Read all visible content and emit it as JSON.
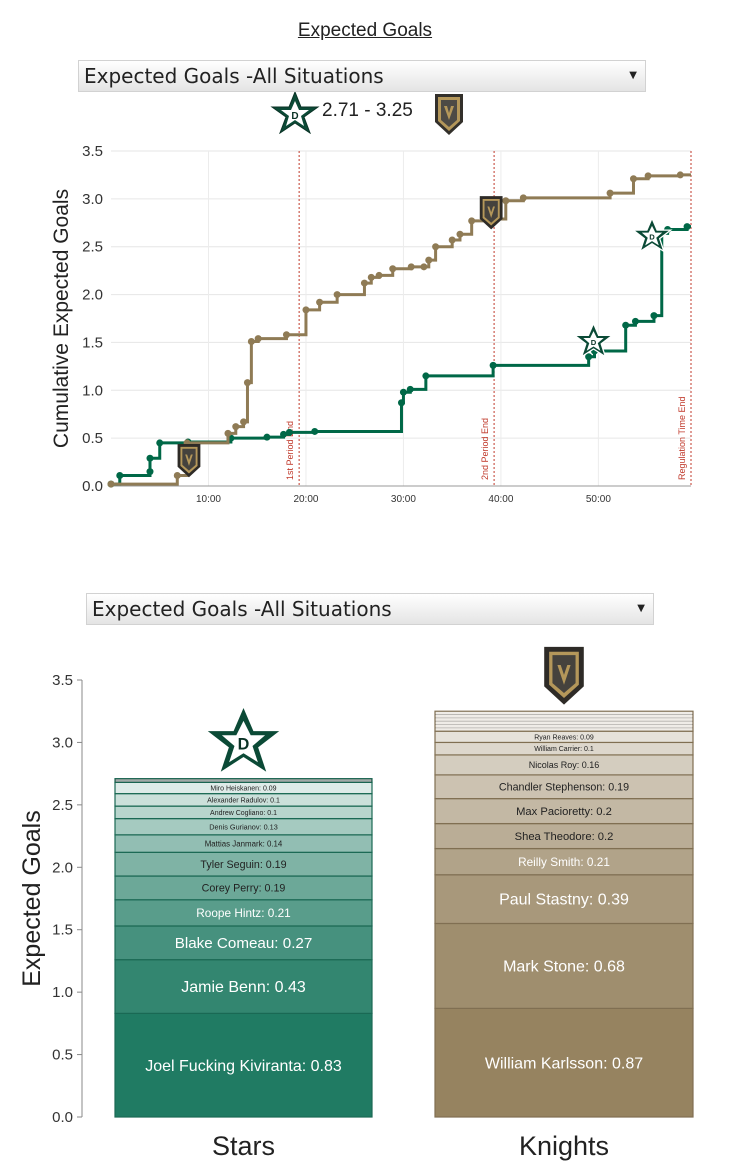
{
  "page": {
    "title": "Expected Goals",
    "dropdown_1_value": "Expected Goals -All Situations",
    "dropdown_2_value": "Expected Goals -All Situations",
    "score_text": "2.71 - 3.25"
  },
  "colors": {
    "stars": "#006847",
    "knights": "#8f7b55",
    "period_line": "#c0392b"
  },
  "icons": [
    "stars-logo-icon",
    "knights-logo-icon",
    "chevron-down-icon"
  ],
  "chart_data": [
    {
      "type": "line",
      "title": "",
      "xlabel": "",
      "ylabel": "Cumulative Expected Goals",
      "xlim": [
        0,
        59.5
      ],
      "ylim": [
        0,
        3.5
      ],
      "y_ticks": [
        "0.0",
        "0.5",
        "1.0",
        "1.5",
        "2.0",
        "2.5",
        "3.0",
        "3.5"
      ],
      "x_ticks": [
        {
          "value": 10,
          "label": "10:00"
        },
        {
          "value": 20,
          "label": "20:00"
        },
        {
          "value": 30,
          "label": "30:00"
        },
        {
          "value": 40,
          "label": "40:00"
        },
        {
          "value": 50,
          "label": "50:00"
        }
      ],
      "grid": true,
      "period_markers": [
        {
          "value": 19.3,
          "label": "1st Period End"
        },
        {
          "value": 39.3,
          "label": "2nd Period End"
        },
        {
          "value": 59.5,
          "label": "Regulation Time End"
        }
      ],
      "goal_markers": [
        {
          "team": "Knights",
          "x": 8.0,
          "y": 0.28
        },
        {
          "team": "Knights",
          "x": 39.0,
          "y": 2.87
        },
        {
          "team": "Stars",
          "x": 49.5,
          "y": 1.52
        },
        {
          "team": "Stars",
          "x": 55.5,
          "y": 2.62
        }
      ],
      "series": [
        {
          "name": "Stars",
          "points": [
            [
              0,
              0.02
            ],
            [
              0.9,
              0.11
            ],
            [
              4.0,
              0.15
            ],
            [
              4.0,
              0.29
            ],
            [
              5.0,
              0.45
            ],
            [
              7.9,
              0.46
            ],
            [
              12.3,
              0.5
            ],
            [
              16.0,
              0.51
            ],
            [
              17.7,
              0.54
            ],
            [
              18.3,
              0.56
            ],
            [
              20.9,
              0.57
            ],
            [
              29.8,
              0.87
            ],
            [
              30.0,
              0.98
            ],
            [
              30.7,
              1.01
            ],
            [
              32.3,
              1.15
            ],
            [
              39.2,
              1.26
            ],
            [
              49.0,
              1.35
            ],
            [
              49.6,
              1.41
            ],
            [
              52.8,
              1.68
            ],
            [
              53.8,
              1.72
            ],
            [
              55.7,
              1.78
            ],
            [
              56.5,
              2.64
            ],
            [
              57.1,
              2.68
            ],
            [
              59.1,
              2.71
            ]
          ]
        },
        {
          "name": "Knights",
          "points": [
            [
              0,
              0.02
            ],
            [
              6.8,
              0.11
            ],
            [
              7.8,
              0.45
            ],
            [
              12.0,
              0.55
            ],
            [
              12.8,
              0.62
            ],
            [
              13.6,
              0.67
            ],
            [
              14.0,
              1.08
            ],
            [
              14.4,
              1.51
            ],
            [
              15.1,
              1.54
            ],
            [
              18.0,
              1.58
            ],
            [
              20.0,
              1.84
            ],
            [
              21.4,
              1.92
            ],
            [
              23.2,
              2.0
            ],
            [
              26.0,
              2.12
            ],
            [
              26.7,
              2.18
            ],
            [
              27.5,
              2.2
            ],
            [
              28.9,
              2.27
            ],
            [
              30.8,
              2.29
            ],
            [
              32.1,
              2.29
            ],
            [
              32.6,
              2.36
            ],
            [
              33.3,
              2.5
            ],
            [
              35.0,
              2.57
            ],
            [
              35.8,
              2.63
            ],
            [
              37.0,
              2.77
            ],
            [
              39.1,
              2.79
            ],
            [
              40.5,
              2.98
            ],
            [
              42.3,
              3.01
            ],
            [
              51.2,
              3.06
            ],
            [
              53.6,
              3.21
            ],
            [
              55.1,
              3.24
            ],
            [
              58.4,
              3.25
            ]
          ]
        }
      ]
    },
    {
      "type": "bar",
      "stacked": true,
      "title": "",
      "xlabel": "",
      "ylabel": "Expected Goals",
      "ylim": [
        0,
        3.5
      ],
      "y_ticks": [
        "0.0",
        "0.5",
        "1.0",
        "1.5",
        "2.0",
        "2.5",
        "3.0",
        "3.5"
      ],
      "categories": [
        "Stars",
        "Knights"
      ],
      "stacks": [
        {
          "team": "Stars",
          "segments": [
            {
              "label": "Joel Fucking Kiviranta: 0.83",
              "value": 0.83
            },
            {
              "label": "Jamie Benn: 0.43",
              "value": 0.43
            },
            {
              "label": "Blake Comeau: 0.27",
              "value": 0.27
            },
            {
              "label": "Roope Hintz: 0.21",
              "value": 0.21
            },
            {
              "label": "Corey Perry: 0.19",
              "value": 0.19
            },
            {
              "label": "Tyler Seguin: 0.19",
              "value": 0.19
            },
            {
              "label": "Mattias Janmark: 0.14",
              "value": 0.14
            },
            {
              "label": "Denis Gurianov: 0.13",
              "value": 0.13
            },
            {
              "label": "Andrew Cogliano: 0.1",
              "value": 0.1
            },
            {
              "label": "Alexander Radulov: 0.1",
              "value": 0.1
            },
            {
              "label": "Miro Heiskanen: 0.09",
              "value": 0.09
            },
            {
              "label": "",
              "value": 0.03
            }
          ]
        },
        {
          "team": "Knights",
          "segments": [
            {
              "label": "William Karlsson: 0.87",
              "value": 0.87
            },
            {
              "label": "Mark Stone: 0.68",
              "value": 0.68
            },
            {
              "label": "Paul Stastny: 0.39",
              "value": 0.39
            },
            {
              "label": "Reilly Smith: 0.21",
              "value": 0.21
            },
            {
              "label": "Shea Theodore: 0.2",
              "value": 0.2
            },
            {
              "label": "Max Pacioretty: 0.2",
              "value": 0.2
            },
            {
              "label": "Chandler Stephenson: 0.19",
              "value": 0.19
            },
            {
              "label": "Nicolas Roy: 0.16",
              "value": 0.16
            },
            {
              "label": "William Carrier: 0.1",
              "value": 0.1
            },
            {
              "label": "Ryan Reaves: 0.09",
              "value": 0.09
            },
            {
              "label": "",
              "value": 0.16
            }
          ]
        }
      ]
    }
  ]
}
